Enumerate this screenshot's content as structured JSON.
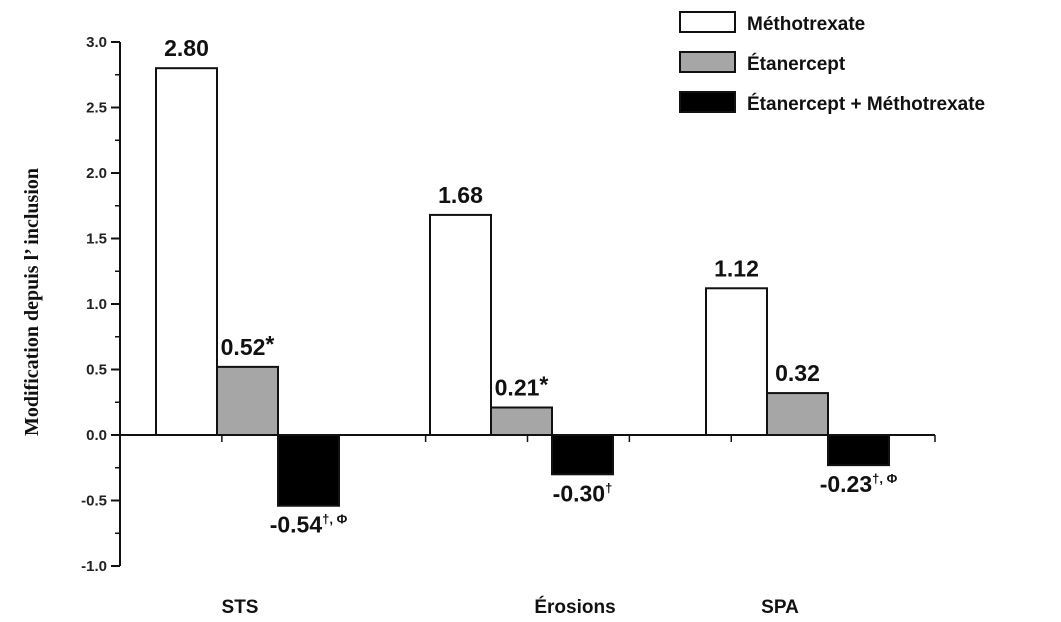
{
  "chart_data": {
    "type": "bar",
    "ylabel": "Modification depuis l’ inclusion",
    "xlabel": "",
    "ylim": [
      -1.0,
      3.0
    ],
    "yticks": [
      "3.0",
      "2.5",
      "2.0",
      "1.5",
      "1.0",
      "0.5",
      "0.0",
      "-0.5",
      "-1.0"
    ],
    "categories": [
      "STS",
      "Érosions",
      "SPA"
    ],
    "legend_position": "top-right",
    "series": [
      {
        "name": "Méthotrexate",
        "color": "#ffffff",
        "values": [
          2.8,
          1.68,
          1.12
        ],
        "labels": [
          "2.80",
          "1.68",
          "1.12"
        ],
        "label_marks": [
          "",
          "",
          ""
        ]
      },
      {
        "name": "Étanercept",
        "color": "#a6a6a6",
        "values": [
          0.52,
          0.21,
          0.32
        ],
        "labels": [
          "0.52",
          "0.21",
          "0.32"
        ],
        "label_marks": [
          "*",
          "*",
          ""
        ]
      },
      {
        "name": "Étanercept + Méthotrexate",
        "color": "#000000",
        "values": [
          -0.54,
          -0.3,
          -0.23
        ],
        "labels": [
          "-0.54",
          "-0.30",
          "-0.23"
        ],
        "label_marks": [
          "†, Φ",
          "†",
          "†, Φ"
        ]
      }
    ]
  }
}
